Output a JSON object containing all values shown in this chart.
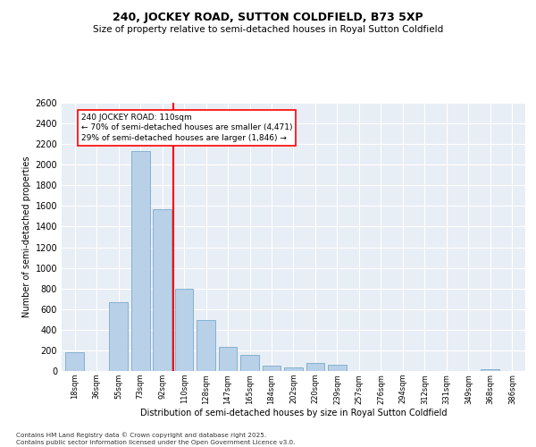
{
  "title": "240, JOCKEY ROAD, SUTTON COLDFIELD, B73 5XP",
  "subtitle": "Size of property relative to semi-detached houses in Royal Sutton Coldfield",
  "xlabel": "Distribution of semi-detached houses by size in Royal Sutton Coldfield",
  "ylabel": "Number of semi-detached properties",
  "categories": [
    "18sqm",
    "36sqm",
    "55sqm",
    "73sqm",
    "92sqm",
    "110sqm",
    "128sqm",
    "147sqm",
    "165sqm",
    "184sqm",
    "202sqm",
    "220sqm",
    "239sqm",
    "257sqm",
    "276sqm",
    "294sqm",
    "312sqm",
    "331sqm",
    "349sqm",
    "368sqm",
    "386sqm"
  ],
  "values": [
    185,
    0,
    670,
    2130,
    1570,
    800,
    490,
    230,
    160,
    55,
    35,
    80,
    65,
    0,
    0,
    0,
    0,
    0,
    0,
    20,
    0
  ],
  "bar_color": "#b8d0e8",
  "bar_edge_color": "#7aaacb",
  "vline_color": "red",
  "vline_index": 4.5,
  "annotation_title": "240 JOCKEY ROAD: 110sqm",
  "annotation_line1": "← 70% of semi-detached houses are smaller (4,471)",
  "annotation_line2": "29% of semi-detached houses are larger (1,846) →",
  "ylim": [
    0,
    2600
  ],
  "yticks": [
    0,
    200,
    400,
    600,
    800,
    1000,
    1200,
    1400,
    1600,
    1800,
    2000,
    2200,
    2400,
    2600
  ],
  "bg_color": "#e8eef5",
  "grid_color": "white",
  "title_fontsize": 9,
  "subtitle_fontsize": 7.5,
  "footnote1": "Contains HM Land Registry data © Crown copyright and database right 2025.",
  "footnote2": "Contains public sector information licensed under the Open Government Licence v3.0."
}
